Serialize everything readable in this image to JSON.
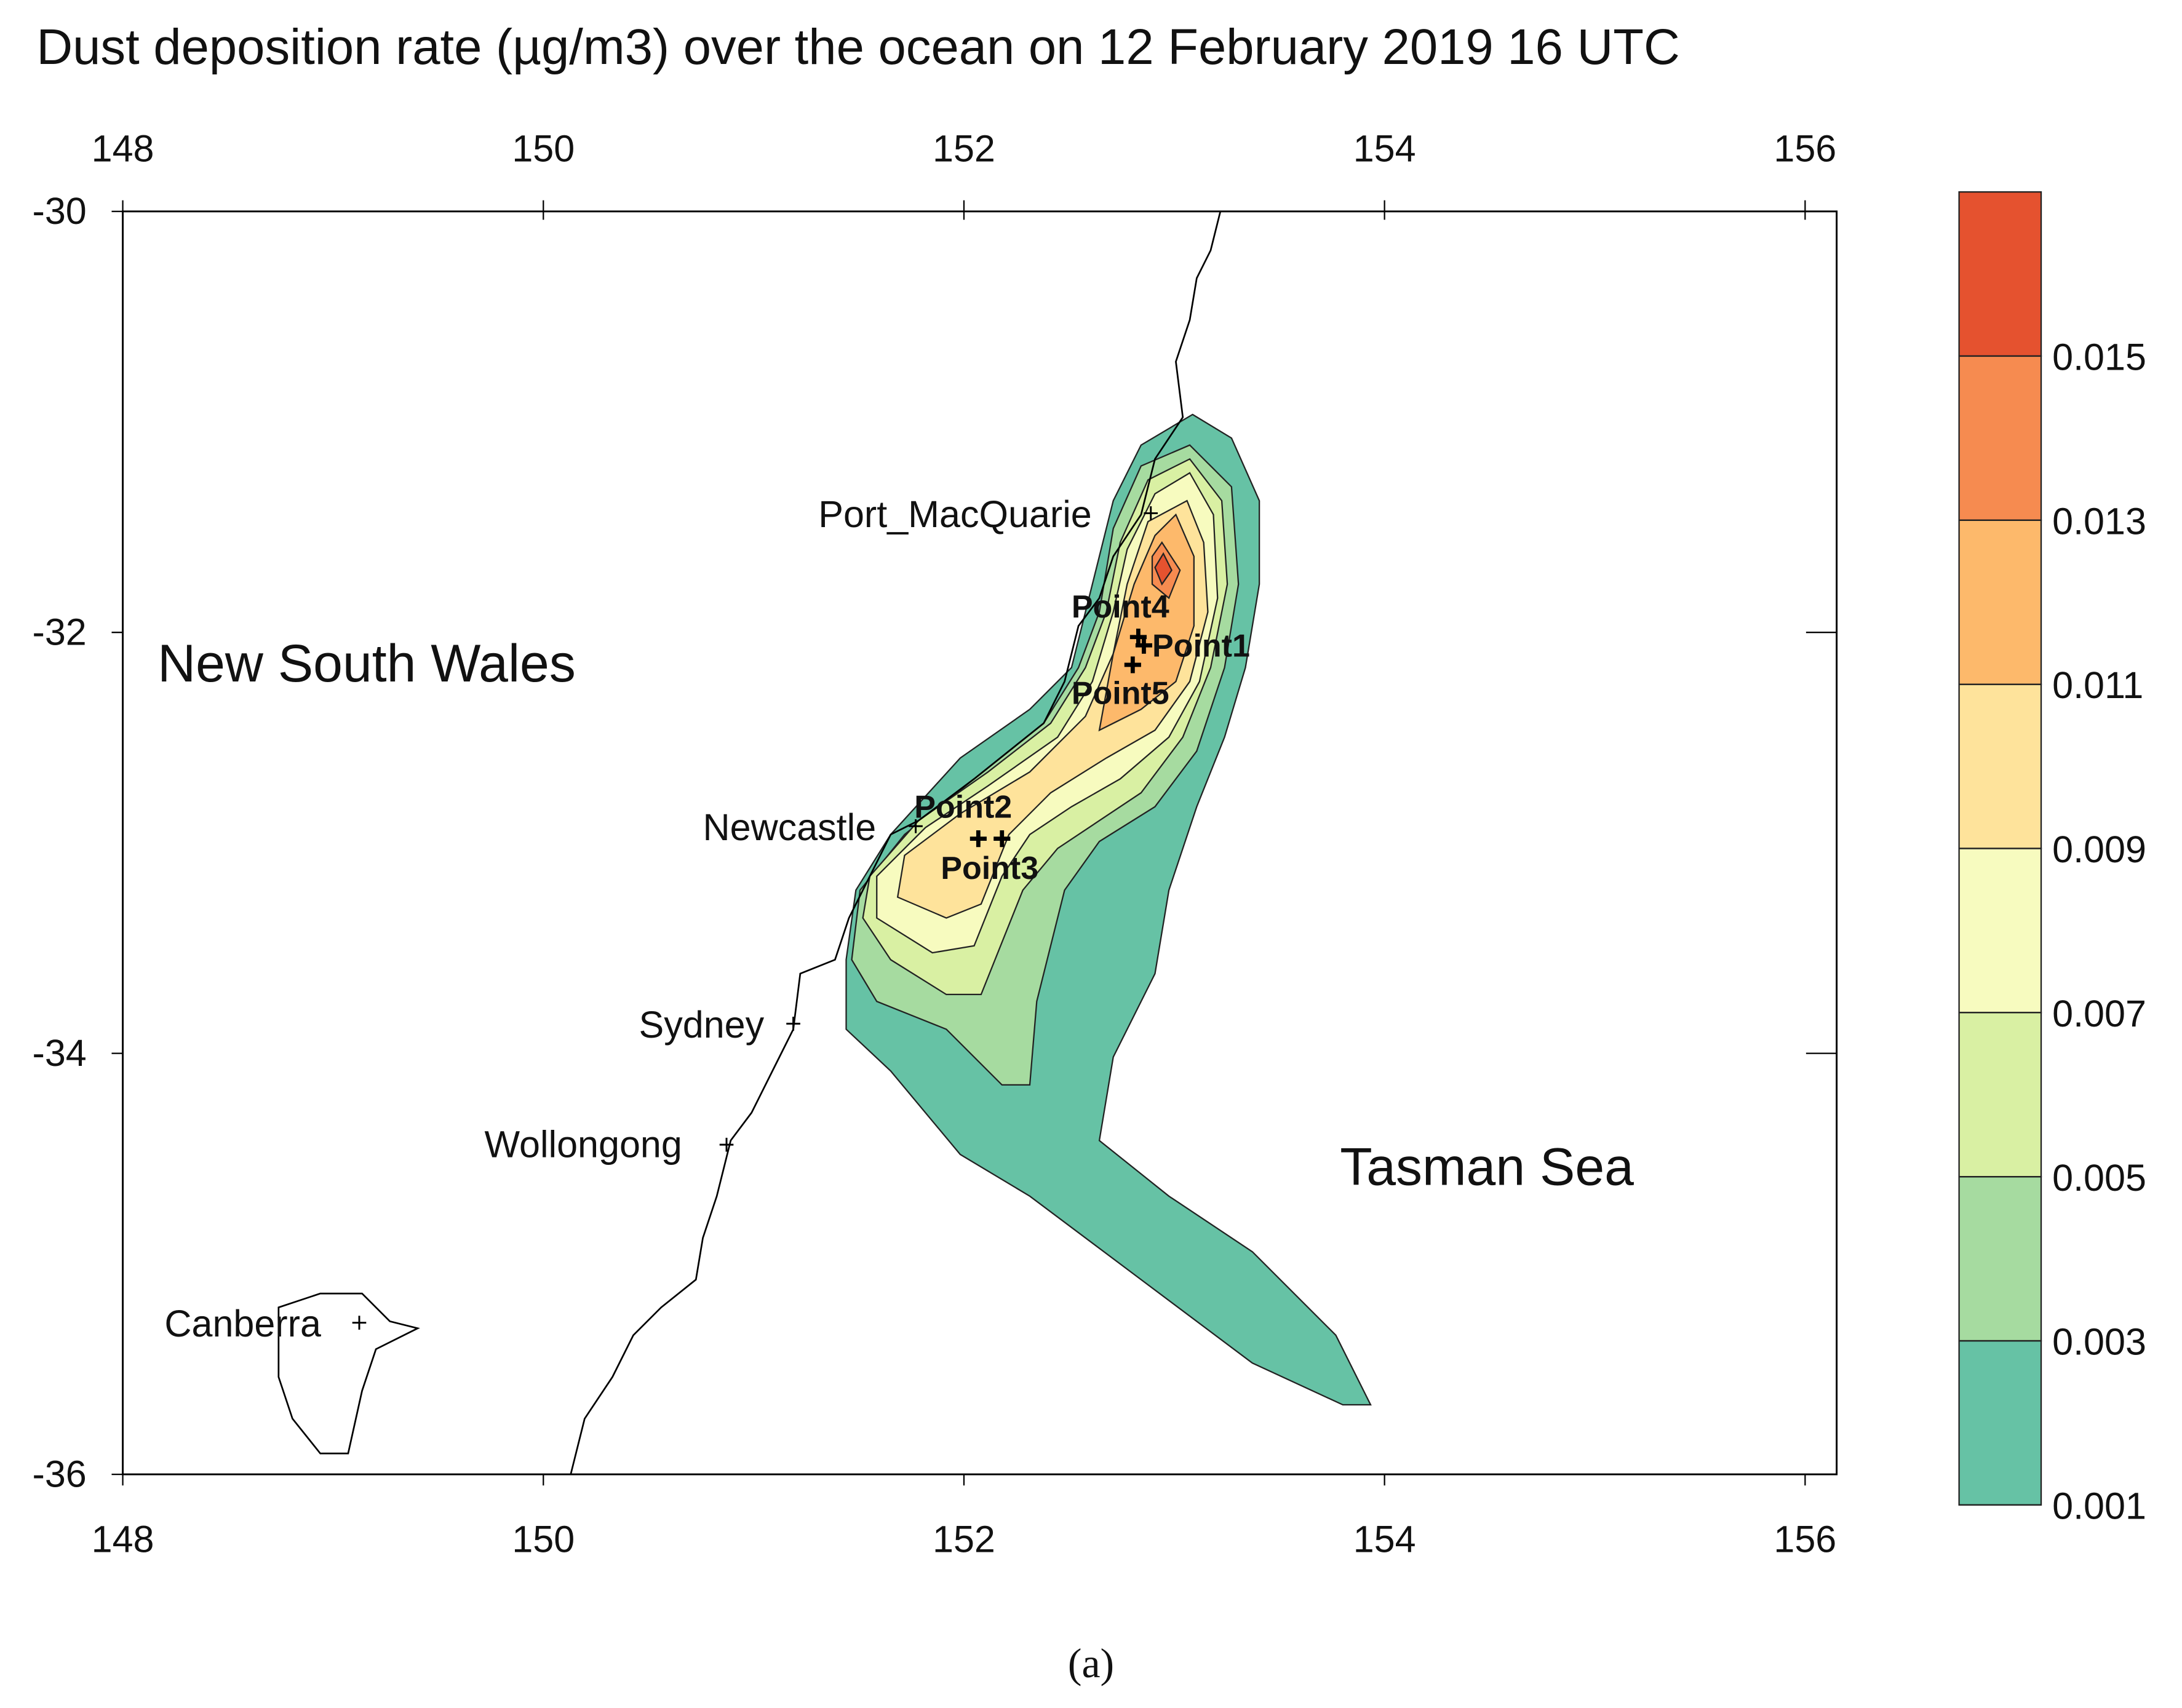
{
  "chart_data": {
    "type": "contour",
    "title": "Dust deposition rate (µg/m3) over the ocean on 12 February 2019 16 UTC",
    "xlim": [
      148,
      156.15
    ],
    "ylim": [
      -36,
      -30
    ],
    "xticks": [
      148,
      150,
      152,
      154,
      156
    ],
    "yticks": [
      -30,
      -32,
      -34,
      -36
    ],
    "colorbar": {
      "lim": [
        0.001,
        0.017
      ],
      "ticks": [
        0.001,
        0.003,
        0.005,
        0.007,
        0.009,
        0.011,
        0.013,
        0.015
      ],
      "colors": [
        "#66c2a5",
        "#a6dba0",
        "#d9f0a3",
        "#f7fbbf",
        "#fee39b",
        "#fdb96b",
        "#f68b50",
        "#e5522f"
      ]
    },
    "regions": [
      "New South Wales",
      "Tasman Sea"
    ],
    "places": [
      "Port_MacQuarie",
      "Newcastle",
      "Sydney",
      "Wollongong",
      "Canberra"
    ],
    "points": [
      "Point1",
      "Point2",
      "Point3",
      "Point4",
      "Point5"
    ],
    "caption": "(a)"
  }
}
